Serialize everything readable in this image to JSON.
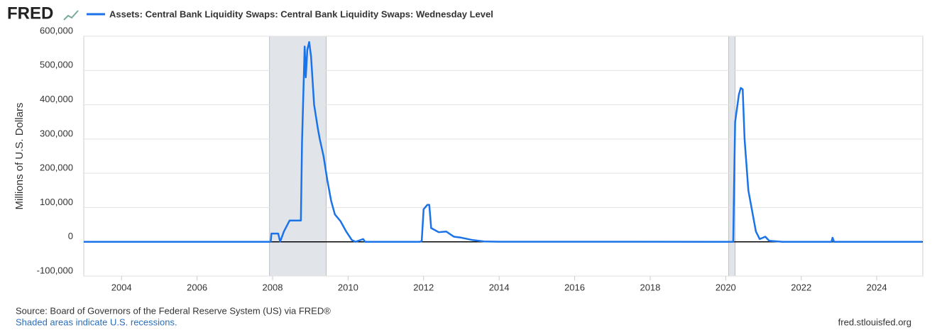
{
  "brand": "FRED",
  "chart_data": {
    "type": "line",
    "y_label": "Millions of U.S. Dollars",
    "x": [
      2003.0,
      2007.95,
      2007.97,
      2008.15,
      2008.2,
      2008.3,
      2008.45,
      2008.75,
      2008.78,
      2008.85,
      2008.88,
      2008.92,
      2008.97,
      2009.02,
      2009.1,
      2009.2,
      2009.25,
      2009.35,
      2009.45,
      2009.55,
      2009.65,
      2009.8,
      2009.95,
      2010.1,
      2010.2,
      2010.4,
      2010.45,
      2011.9,
      2011.95,
      2012.0,
      2012.1,
      2012.15,
      2012.2,
      2012.4,
      2012.6,
      2012.8,
      2013.0,
      2013.3,
      2013.6,
      2014.0,
      2020.1,
      2020.2,
      2020.22,
      2020.25,
      2020.35,
      2020.4,
      2020.45,
      2020.5,
      2020.6,
      2020.7,
      2020.8,
      2020.9,
      2021.05,
      2021.15,
      2021.5,
      2022.8,
      2022.83,
      2022.87,
      2025.2
    ],
    "series": [
      {
        "name": "Assets: Central Bank Liquidity Swaps: Central Bank Liquidity Swaps: Wednesday Level",
        "color": "#1a73e8",
        "values": [
          0,
          0,
          24000,
          24000,
          0,
          30000,
          62000,
          62000,
          290000,
          570000,
          480000,
          560000,
          583000,
          540000,
          400000,
          330000,
          300000,
          250000,
          180000,
          120000,
          80000,
          60000,
          30000,
          5000,
          0,
          8000,
          0,
          0,
          2000,
          95000,
          108000,
          108000,
          40000,
          28000,
          30000,
          15000,
          12000,
          5000,
          1000,
          200,
          0,
          0,
          150000,
          350000,
          430000,
          449000,
          445000,
          300000,
          150000,
          90000,
          30000,
          8000,
          15000,
          3000,
          0,
          0,
          12000,
          0,
          0
        ]
      }
    ],
    "recessions": [
      [
        2007.92,
        2009.42
      ],
      [
        2020.08,
        2020.25
      ]
    ],
    "xlim": [
      2003.0,
      2025.22
    ],
    "xticks": [
      2004,
      2006,
      2008,
      2010,
      2012,
      2014,
      2016,
      2018,
      2020,
      2022,
      2024
    ],
    "ylim": [
      -100000,
      600000
    ],
    "yticks": [
      {
        "value": -100000,
        "label": "-100,000"
      },
      0,
      {
        "value": 100000,
        "label": "100,000"
      },
      {
        "value": 200000,
        "label": "200,000"
      },
      {
        "value": 300000,
        "label": "300,000"
      },
      {
        "value": 400000,
        "label": "400,000"
      },
      {
        "value": 500000,
        "label": "500,000"
      },
      {
        "value": 600000,
        "label": "600,000"
      }
    ],
    "grid": true,
    "source": "Source: Board of Governors of the Federal Reserve System (US) via FRED®",
    "note": "Shaded areas indicate U.S. recessions.",
    "site": "fred.stlouisfed.org"
  }
}
